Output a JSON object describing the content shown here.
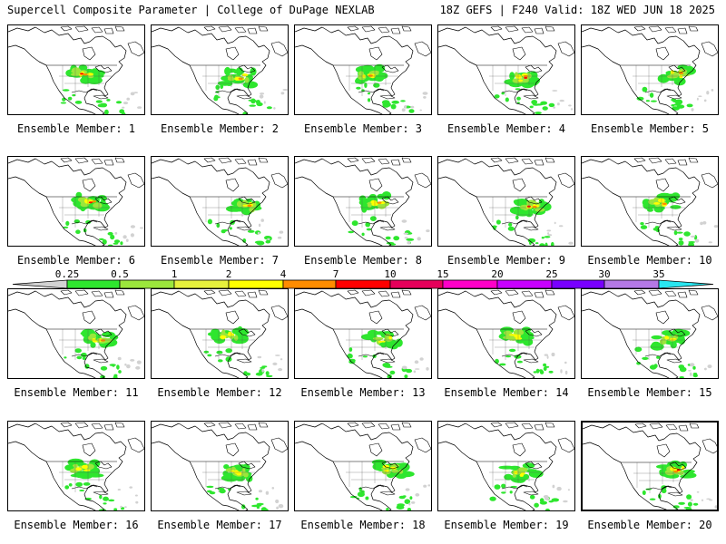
{
  "header": {
    "left": "Supercell Composite Parameter | College of DuPage NEXLAB",
    "right": "18Z GEFS | F240 Valid: 18Z WED JUN 18 2025"
  },
  "member_label_prefix": "Ensemble Member: ",
  "members": [
    1,
    2,
    3,
    4,
    5,
    6,
    7,
    8,
    9,
    10,
    11,
    12,
    13,
    14,
    15,
    16,
    17,
    18,
    19,
    20
  ],
  "selected_member": 20,
  "colorbar": {
    "labels": [
      "0.25",
      "0.5",
      "1",
      "2",
      "4",
      "7",
      "10",
      "15",
      "20",
      "25",
      "30",
      "35"
    ],
    "colors": [
      "#d2d2d2",
      "#2ee62e",
      "#9be63c",
      "#e6f03c",
      "#ffff00",
      "#ff8c00",
      "#ff0000",
      "#e6005a",
      "#ff00c8",
      "#c800ff",
      "#7800ff",
      "#b478e6",
      "#28e6f0"
    ]
  },
  "colors": {
    "map_line": "#000000",
    "state_line": "#555555"
  }
}
